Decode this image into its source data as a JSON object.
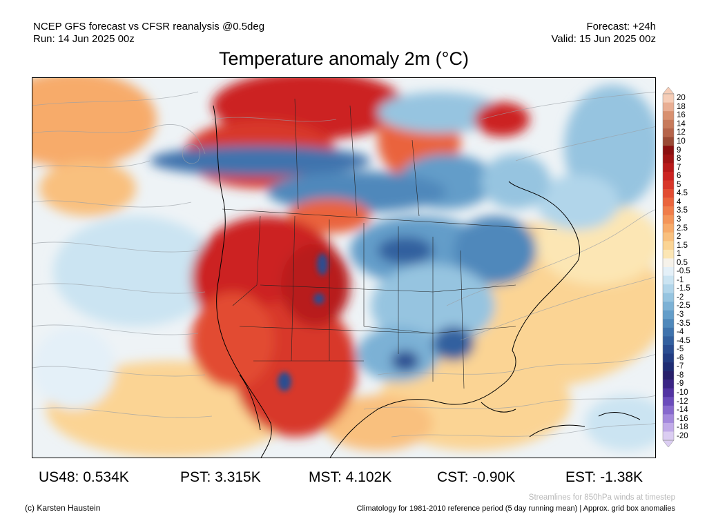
{
  "header": {
    "left_line1": "NCEP GFS forecast vs CFSR reanalysis @0.5deg",
    "left_line2": "Run: 14 Jun 2025 00z",
    "right_line1": "Forecast: +24h",
    "right_line2": "Valid: 15 Jun 2025 00z"
  },
  "title": "Temperature anomaly 2m (°C)",
  "colorbar": {
    "labels": [
      "20",
      "18",
      "16",
      "14",
      "12",
      "10",
      "9",
      "8",
      "7",
      "6",
      "5",
      "4.5",
      "4",
      "3.5",
      "3",
      "2.5",
      "2",
      "1.5",
      "1",
      "0.5",
      "-0.5",
      "-1",
      "-1.5",
      "-2",
      "-2.5",
      "-3",
      "-3.5",
      "-4",
      "-4.5",
      "-5",
      "-6",
      "-7",
      "-8",
      "-9",
      "-10",
      "-12",
      "-14",
      "-16",
      "-18",
      "-20"
    ],
    "colors": [
      "#f6cdb7",
      "#e9ae93",
      "#d8906f",
      "#c77a5b",
      "#b5644a",
      "#9a4a35",
      "#8a1010",
      "#a01414",
      "#b81a1a",
      "#cc2422",
      "#d8372a",
      "#e24c32",
      "#ea643c",
      "#f07d4a",
      "#f49559",
      "#f7ab6a",
      "#f9c07e",
      "#fbd494",
      "#fce6b4",
      "#f6f2ea",
      "#e4f0f8",
      "#cbe4f2",
      "#b1d5ea",
      "#96c4e0",
      "#7cb1d5",
      "#639dc9",
      "#4f88bb",
      "#3f73ad",
      "#33609f",
      "#2a4d91",
      "#223c82",
      "#1e2c73",
      "#271f6a",
      "#3b2585",
      "#5233a2",
      "#6b4cbb",
      "#8769cd",
      "#a489dc",
      "#c1abe8",
      "#dbcdf2"
    ]
  },
  "stats": [
    {
      "label": "US48: 0.534K"
    },
    {
      "label": "PST: 3.315K"
    },
    {
      "label": "MST: 4.102K"
    },
    {
      "label": "CST: -0.90K"
    },
    {
      "label": "EST: -1.38K"
    }
  ],
  "footer": {
    "credit": "(c) Karsten Haustein",
    "streamlines_note": "Streamlines for 850hPa winds at timestep",
    "climatology_note": "Climatology for 1981-2010 reference period (5 day running mean) | Approx. grid box anomalies"
  }
}
